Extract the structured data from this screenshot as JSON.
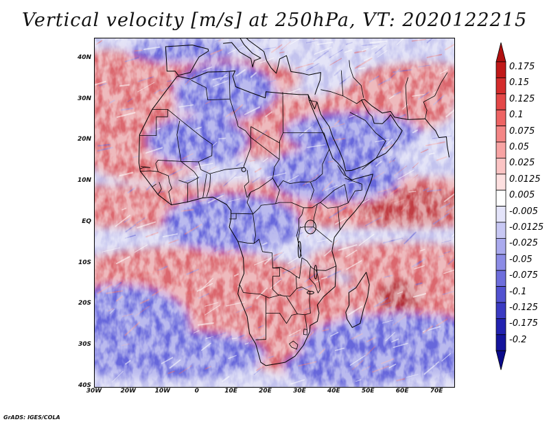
{
  "title": "Vertical velocity [m/s] at 250hPa, VT: 2020122215",
  "credit": "GrADS: IGES/COLA",
  "map": {
    "lon_range": [
      -30,
      75
    ],
    "lat_range": [
      -40,
      45
    ],
    "lat_ticks": [
      {
        "value": 40,
        "label": "40N"
      },
      {
        "value": 30,
        "label": "30N"
      },
      {
        "value": 20,
        "label": "20N"
      },
      {
        "value": 10,
        "label": "10N"
      },
      {
        "value": 0,
        "label": "EQ"
      },
      {
        "value": -10,
        "label": "10S"
      },
      {
        "value": -20,
        "label": "20S"
      },
      {
        "value": -30,
        "label": "30S"
      },
      {
        "value": -40,
        "label": "40S"
      }
    ],
    "lon_ticks": [
      {
        "value": -30,
        "label": "30W"
      },
      {
        "value": -20,
        "label": "20W"
      },
      {
        "value": -10,
        "label": "10W"
      },
      {
        "value": 0,
        "label": "0"
      },
      {
        "value": 10,
        "label": "10E"
      },
      {
        "value": 20,
        "label": "20E"
      },
      {
        "value": 30,
        "label": "30E"
      },
      {
        "value": 40,
        "label": "40E"
      },
      {
        "value": 50,
        "label": "50E"
      },
      {
        "value": 60,
        "label": "60E"
      },
      {
        "value": 70,
        "label": "70E"
      }
    ]
  },
  "colorbar": {
    "levels": [
      {
        "label": "0.175",
        "color": "#c01818"
      },
      {
        "label": "0.15",
        "color": "#d42c2c"
      },
      {
        "label": "0.125",
        "color": "#e44848"
      },
      {
        "label": "0.1",
        "color": "#ee6464"
      },
      {
        "label": "0.075",
        "color": "#f48686"
      },
      {
        "label": "0.05",
        "color": "#f8a4a4"
      },
      {
        "label": "0.025",
        "color": "#fbc4c4"
      },
      {
        "label": "0.0125",
        "color": "#fde0e0"
      },
      {
        "label": "0.005",
        "color": "#ffffff"
      },
      {
        "label": "-0.005",
        "color": "#e4e4fa"
      },
      {
        "label": "-0.0125",
        "color": "#c8c8f4"
      },
      {
        "label": "-0.025",
        "color": "#aaaaee"
      },
      {
        "label": "-0.05",
        "color": "#8c8ce6"
      },
      {
        "label": "-0.075",
        "color": "#6e6edc"
      },
      {
        "label": "-0.1",
        "color": "#5252d0"
      },
      {
        "label": "-0.125",
        "color": "#3a3ac2"
      },
      {
        "label": "-0.175",
        "color": "#2222b0"
      },
      {
        "label": "-0.2",
        "color": "#14149c"
      }
    ],
    "max_arrow_color": "#b01010",
    "min_arrow_color": "#0a0a8a"
  },
  "features": {
    "positive_color": "#e05858",
    "negative_color": "#5858d8",
    "coast_color": "#000000"
  }
}
